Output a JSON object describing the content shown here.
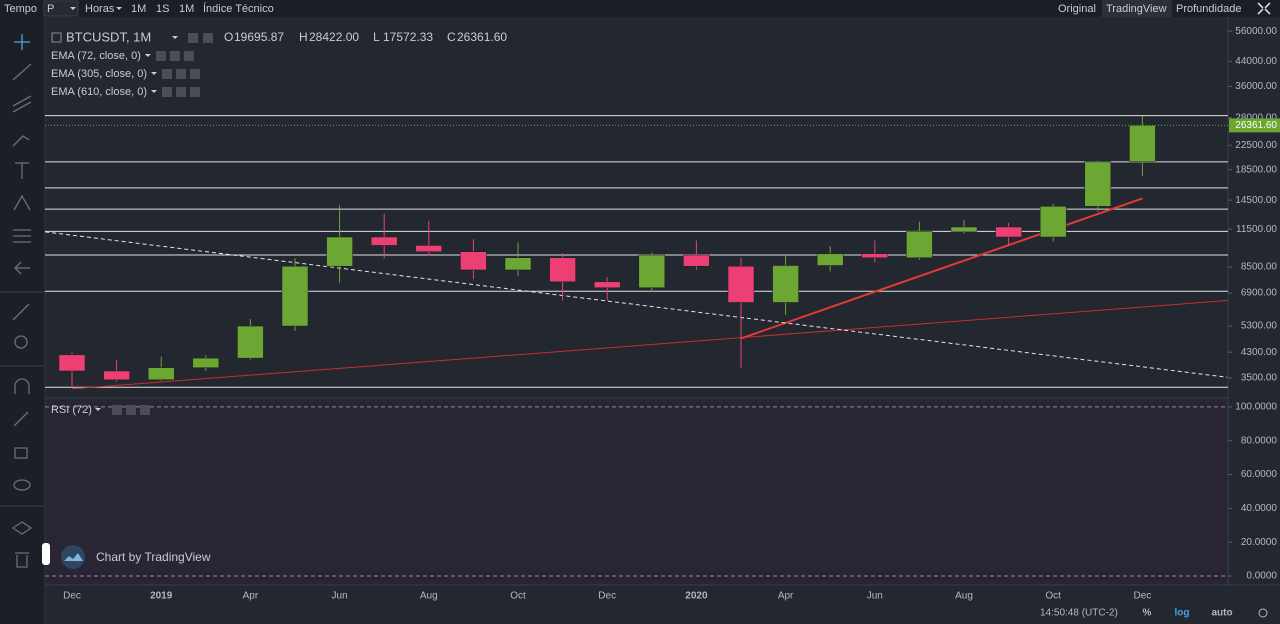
{
  "toolbar": {
    "left": [
      "Tempo",
      "P",
      "Horas",
      "1M",
      "1S",
      "1M",
      "Índice Técnico"
    ],
    "left_active": 5,
    "right": [
      "Original",
      "TradingView",
      "Profundidade"
    ],
    "right_active": 1
  },
  "legend": {
    "symbol": "BTCUSDT, 1M",
    "ohlc": [
      {
        "key": "O",
        "value": "19695.87"
      },
      {
        "key": "H",
        "value": "28422.00"
      },
      {
        "key": "L",
        "value": "17572.33"
      },
      {
        "key": "C",
        "value": "26361.60"
      }
    ],
    "indicators": [
      "EMA (72, close, 0)",
      "EMA (305, close, 0)",
      "EMA (610, close, 0)"
    ]
  },
  "watermark": "Chart by TradingView",
  "status": {
    "time": "14:50:48 (UTC-2)",
    "buttons": [
      "%",
      "log",
      "auto"
    ],
    "active": 1
  },
  "chart_data": [
    {
      "type": "candlestick",
      "categories": [
        "Dec",
        null,
        "2019",
        null,
        "Apr",
        null,
        "Jun",
        null,
        "Aug",
        null,
        "Oct",
        null,
        "Dec",
        null,
        "2020",
        null,
        "Apr",
        null,
        "Jun",
        null,
        "Aug",
        null,
        "Oct",
        null,
        "Dec"
      ],
      "open": [
        4210,
        3700,
        3450,
        3800,
        4100,
        5300,
        8550,
        10800,
        10100,
        9600,
        8300,
        9150,
        7550,
        7200,
        9350,
        8550,
        6400,
        8600,
        9450,
        9150,
        11300,
        11700,
        10800,
        13800,
        19695.87
      ],
      "high": [
        4300,
        4050,
        4150,
        4200,
        5600,
        9100,
        13900,
        13000,
        12300,
        10600,
        10350,
        9500,
        7850,
        9550,
        10500,
        9150,
        9400,
        10050,
        10500,
        12200,
        12400,
        12100,
        14100,
        19900,
        28422
      ],
      "low": [
        3240,
        3400,
        3420,
        3700,
        4050,
        5100,
        7500,
        9100,
        9300,
        7700,
        7900,
        6500,
        6500,
        7000,
        8300,
        3800,
        5800,
        8200,
        8800,
        9000,
        11100,
        10100,
        10400,
        13200,
        17572.33
      ],
      "close": [
        3700,
        3450,
        3800,
        4100,
        5300,
        8550,
        10800,
        10100,
        9600,
        8300,
        9150,
        7550,
        7200,
        9350,
        8550,
        6400,
        8600,
        9450,
        9150,
        11300,
        11700,
        10800,
        13800,
        19695.87,
        26361.6
      ],
      "up_color": "#6ca633",
      "down_color": "#ec3f74",
      "log": true,
      "ylim": [
        3030,
        62700
      ],
      "yticks": [
        {
          "value": 56000,
          "label": "56000.00"
        },
        {
          "value": 44000,
          "label": "44000.00"
        },
        {
          "value": 36000,
          "label": "36000.00"
        },
        {
          "value": 28000,
          "label": "28000.00"
        },
        {
          "value": 22500,
          "label": "22500.00"
        },
        {
          "value": 18500,
          "label": "18500.00"
        },
        {
          "value": 14500,
          "label": "14500.00"
        },
        {
          "value": 11500,
          "label": "11500.00"
        },
        {
          "value": 8500,
          "label": "8500.00"
        },
        {
          "value": 6900,
          "label": "6900.00"
        },
        {
          "value": 5300,
          "label": "5300.00"
        },
        {
          "value": 4300,
          "label": "4300.00"
        },
        {
          "value": 3500,
          "label": "3500.00"
        }
      ],
      "horizontal_lines": [
        28500,
        19700,
        16000,
        13500,
        11300,
        9350,
        7000,
        3250
      ],
      "horizontal_line_color": "#e0e0e0",
      "last_price_label": "26361.60",
      "trend_lines": [
        {
          "start": [
            0,
            3210
          ],
          "end": [
            25.9,
            6500
          ],
          "color": "#c62f2f",
          "width": 1,
          "dashed": false
        },
        {
          "start": [
            15,
            4800
          ],
          "end": [
            24,
            14700
          ],
          "color": "#e53935",
          "width": 2,
          "dashed": false
        },
        {
          "start": [
            -0.6,
            11250
          ],
          "end": [
            25.9,
            3520
          ],
          "color": "#e6e6e6",
          "width": 1,
          "dashed": true
        }
      ]
    },
    {
      "type": "line",
      "title": "RSI (72)",
      "ylim": [
        -5.3,
        104.1
      ],
      "yticks": [
        {
          "value": 100,
          "label": "100.0000"
        },
        {
          "value": 80,
          "label": "80.0000"
        },
        {
          "value": 60,
          "label": "60.0000"
        },
        {
          "value": 40,
          "label": "40.0000"
        },
        {
          "value": 20,
          "label": "20.0000"
        },
        {
          "value": 0,
          "label": "0.0000"
        }
      ],
      "series": []
    }
  ]
}
